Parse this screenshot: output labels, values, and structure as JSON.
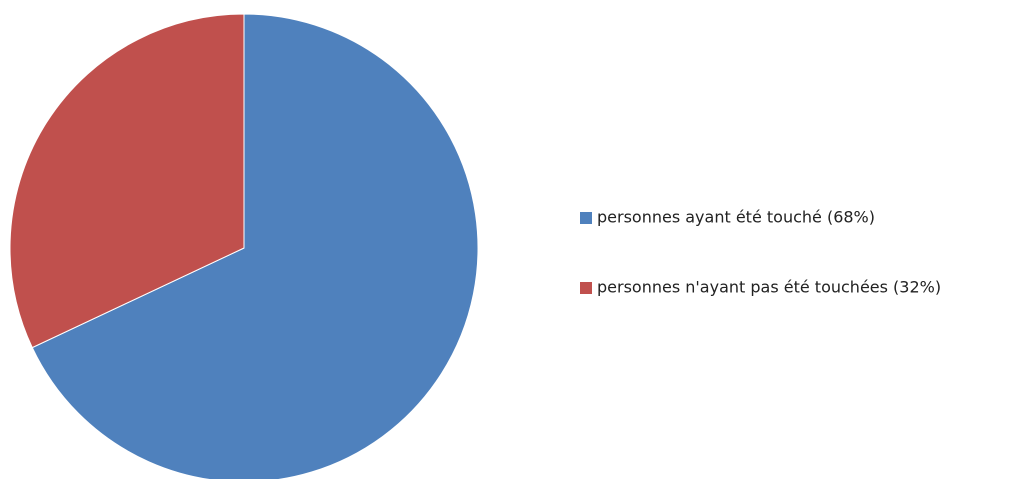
{
  "chart_data": {
    "type": "pie",
    "categories": [
      "personnes ayant été touché (68%)",
      "personnes n'ayant pas été touchées (32%)"
    ],
    "values": [
      68,
      32
    ],
    "colors": [
      "#4f81bd",
      "#c0504d"
    ],
    "legend": "right"
  }
}
